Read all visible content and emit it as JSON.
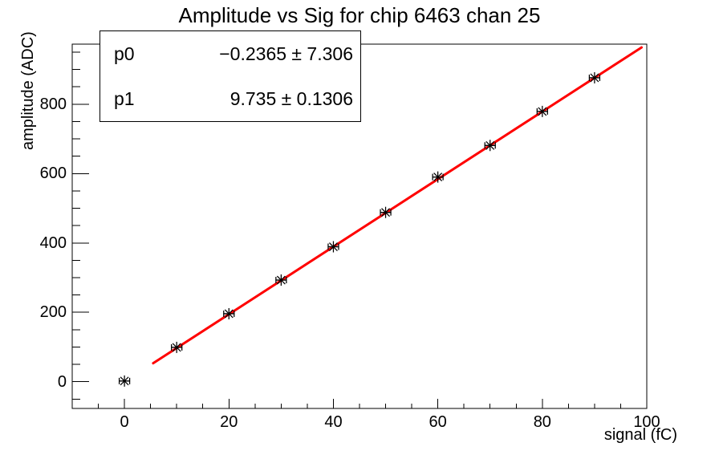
{
  "chart_data": {
    "type": "scatter",
    "title": "Amplitude vs Sig for chip 6463 chan 25",
    "xlabel": "signal (fC)",
    "ylabel": "amplitude (ADC)",
    "xlim": [
      -10,
      100
    ],
    "ylim": [
      -77,
      973
    ],
    "x_major_ticks": [
      0,
      20,
      40,
      60,
      80,
      100
    ],
    "x_minor_step": 5,
    "y_major_ticks": [
      0,
      200,
      400,
      600,
      800
    ],
    "y_minor_step": 50,
    "grid": "off",
    "marker": "asterisk-with-x-error-bars",
    "marker_color": "#000000",
    "points": {
      "x": [
        0,
        10,
        20,
        30,
        40,
        50,
        60,
        70,
        80,
        90
      ],
      "y": [
        2,
        99,
        196,
        293,
        389,
        488,
        590,
        681,
        779,
        876
      ],
      "xerr": 1
    },
    "fit": {
      "type": "linear",
      "p0_label": "p0",
      "p0_text": "−0.2365 ± 7.306",
      "p0": -0.2365,
      "p0_err": 7.306,
      "p1_label": "p1",
      "p1_text": "9.735 ± 0.1306",
      "p1": 9.735,
      "p1_err": 0.1306,
      "x_from": 5.5,
      "x_to": 99,
      "color": "#ff0000"
    },
    "frame_color": "#000000",
    "background_color": "#ffffff"
  }
}
